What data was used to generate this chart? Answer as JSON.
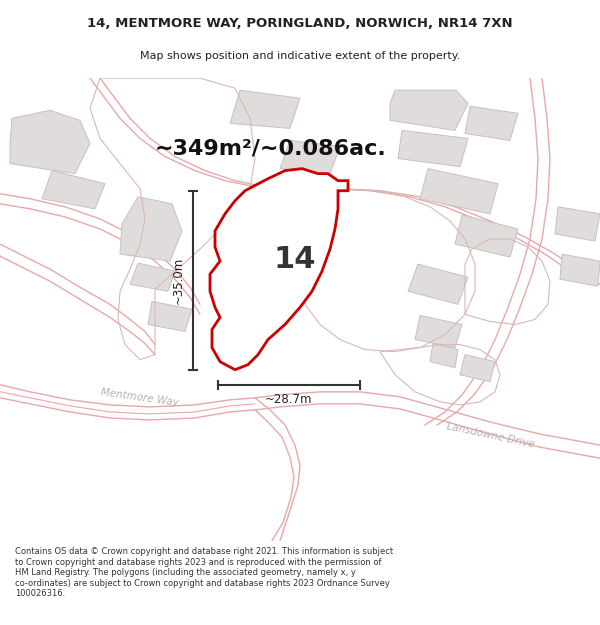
{
  "title_line1": "14, MENTMORE WAY, PORINGLAND, NORWICH, NR14 7XN",
  "title_line2": "Map shows position and indicative extent of the property.",
  "area_label": "~349m²/~0.086ac.",
  "number_label": "14",
  "dim_horizontal": "~28.7m",
  "dim_vertical": "~35.0m",
  "street_label1": "Mentmore Way",
  "street_label2": "Lansdowne Drive",
  "footer_text": "Contains OS data © Crown copyright and database right 2021. This information is subject to Crown copyright and database rights 2023 and is reproduced with the permission of HM Land Registry. The polygons (including the associated geometry, namely x, y co-ordinates) are subject to Crown copyright and database rights 2023 Ordnance Survey 100026316.",
  "bg_color": "#ffffff",
  "map_bg": "#ffffff",
  "road_outline_color": "#e8a8a8",
  "plot_outline_color": "#d8b8b8",
  "building_fill": "#e0dcdc",
  "building_edge": "#c8c0c0",
  "highlight_color": "#cc0000",
  "highlight_fill": "#ffffff",
  "dim_line_color": "#333333",
  "text_color": "#222222",
  "street_text_color": "#b8b0b0"
}
